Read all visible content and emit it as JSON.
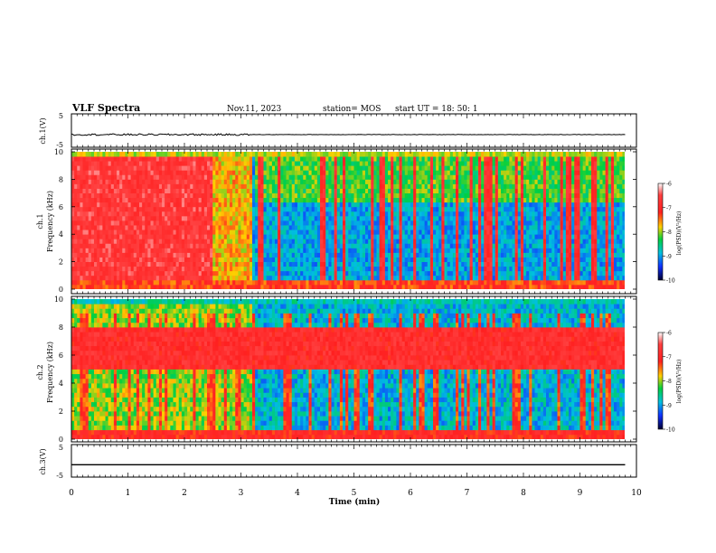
{
  "header": {
    "title": "VLF Spectra",
    "date": "Nov.11, 2023",
    "station": "station= MOS",
    "start_ut": "start  UT =   18: 50: 1"
  },
  "colors": {
    "spectrum_low": "#0a0aa0",
    "spectrum_high": "#ff2020",
    "axis": "#000000"
  },
  "chart_data": [
    {
      "type": "line",
      "ylabel": "ch.1(V)",
      "ylim": [
        -5,
        5
      ],
      "yticks": [
        5,
        -5
      ],
      "x": [
        0,
        9.8
      ],
      "values": [
        -1.2,
        -1.2
      ]
    },
    {
      "type": "heatmap",
      "ylabel_line1": "ch.1",
      "ylabel_line2": "Frequency (kHz)",
      "ylim": [
        0,
        10
      ],
      "yticks": [
        0,
        2,
        4,
        6,
        8,
        10
      ],
      "colorbar": {
        "label": "log(PSD)(V²/Hz)",
        "ticks": [
          -6,
          -7,
          -8,
          -9,
          -10
        ],
        "range": [
          -10,
          -6
        ]
      },
      "segments": [
        {
          "t_start": 0.0,
          "t_end": 2.5,
          "level": -6.6
        },
        {
          "t_start": 2.5,
          "t_end": 3.2,
          "level": -7.6
        },
        {
          "t_start": 3.2,
          "t_end": 9.8,
          "level": -8.9
        }
      ]
    },
    {
      "type": "heatmap",
      "ylabel_line1": "ch.2",
      "ylabel_line2": "Frequency (kHz)",
      "ylim": [
        0,
        10
      ],
      "yticks": [
        0,
        2,
        4,
        6,
        8,
        10
      ],
      "colorbar": {
        "label": "log(PSD)(V²/Hz)",
        "ticks": [
          -6,
          -7,
          -8,
          -9,
          -10
        ],
        "range": [
          -10,
          -6
        ]
      },
      "band_khz": [
        5,
        8
      ],
      "band_level": -6.8,
      "background_level": -8.8
    },
    {
      "type": "line",
      "ylabel": "ch.3(V)",
      "ylim": [
        -5,
        5
      ],
      "yticks": [
        5,
        -5
      ],
      "x": [
        0,
        9.8
      ],
      "values": [
        -1.2,
        -1.2
      ]
    }
  ],
  "xaxis": {
    "label": "Time  (min)",
    "ticks": [
      "0",
      "1",
      "2",
      "3",
      "4",
      "5",
      "6",
      "7",
      "8",
      "9",
      "10"
    ],
    "range": [
      0,
      10
    ]
  }
}
